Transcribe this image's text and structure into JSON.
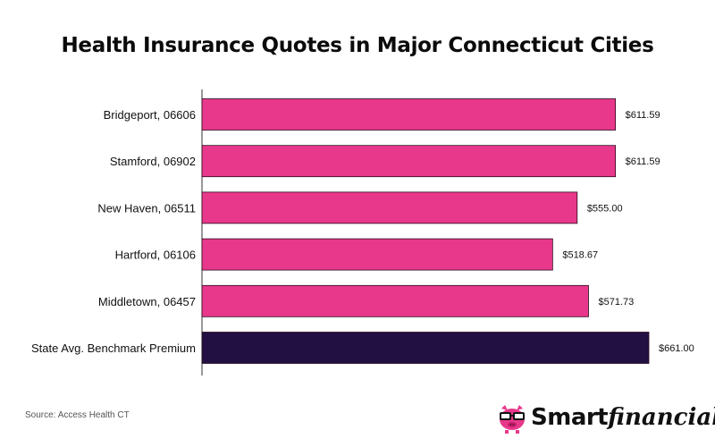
{
  "chart_data": {
    "type": "bar",
    "orientation": "horizontal",
    "title": "Health Insurance Quotes in Major Connecticut Cities",
    "categories": [
      "Bridgeport, 06606",
      "Stamford, 06902",
      "New Haven, 06511",
      "Hartford, 06106",
      "Middletown, 06457",
      "State Avg. Benchmark Premium"
    ],
    "values": [
      611.59,
      611.59,
      555.0,
      518.67,
      571.73,
      661.0
    ],
    "value_labels": [
      "$611.59",
      "$611.59",
      "$555.00",
      "$518.67",
      "$571.73",
      "$661.00"
    ],
    "bar_colors": [
      "#e8388b",
      "#e8388b",
      "#e8388b",
      "#e8388b",
      "#e8388b",
      "#221043"
    ],
    "xlim": [
      0,
      661
    ],
    "grid": false,
    "legend": "none"
  },
  "source": "Source: Access Health CT",
  "logo": {
    "text_bold": "Smart",
    "text_italic": "financial",
    "icon": "piggy-bank-with-glasses-icon",
    "colors": {
      "pig": "#e8388b",
      "glasses": "#111111"
    }
  }
}
